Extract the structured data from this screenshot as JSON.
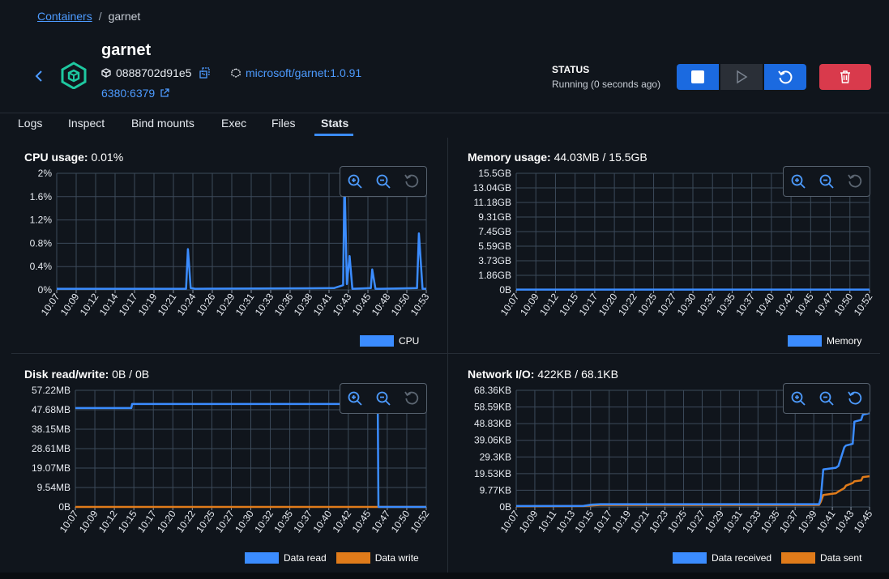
{
  "breadcrumb": {
    "root": "Containers",
    "separator": "/",
    "current": "garnet"
  },
  "container": {
    "name": "garnet",
    "id": "0888702d91e5",
    "image": "microsoft/garnet:1.0.91",
    "ports": "6380:6379"
  },
  "status": {
    "title": "STATUS",
    "value": "Running (0 seconds ago)"
  },
  "icons": {
    "back": "chevron-left-icon",
    "container": "container-cube-icon",
    "id": "cube-icon",
    "copy": "copy-icon",
    "image": "image-layers-icon",
    "external": "external-link-icon",
    "stop": "stop-icon",
    "start": "play-icon",
    "restart": "restart-icon",
    "delete": "trash-icon",
    "zoom_in": "zoom-in-icon",
    "zoom_out": "zoom-out-icon",
    "reset": "reset-icon"
  },
  "colors": {
    "accent": "#3b8cff",
    "danger": "#d93a4c",
    "series_blue": "#3b8cff",
    "series_orange": "#e07b1a"
  },
  "tabs": [
    {
      "label": "Logs"
    },
    {
      "label": "Inspect"
    },
    {
      "label": "Bind mounts"
    },
    {
      "label": "Exec"
    },
    {
      "label": "Files"
    },
    {
      "label": "Stats",
      "active": true
    }
  ],
  "panels": {
    "cpu": {
      "label": "CPU usage:",
      "value": "0.01%"
    },
    "memory": {
      "label": "Memory usage:",
      "value": "44.03MB / 15.5GB"
    },
    "disk": {
      "label": "Disk read/write:",
      "value": "0B / 0B"
    },
    "network": {
      "label": "Network I/O:",
      "value": "422KB / 68.1KB"
    }
  },
  "chart_data": [
    {
      "type": "line",
      "title": "CPU usage",
      "y_ticks": [
        "2%",
        "1.6%",
        "1.2%",
        "0.8%",
        "0.4%",
        "0%"
      ],
      "ylim": [
        0,
        2
      ],
      "x_ticks": [
        "10:07",
        "10:09",
        "10:12",
        "10:14",
        "10:17",
        "10:19",
        "10:21",
        "10:24",
        "10:26",
        "10:29",
        "10:31",
        "10:33",
        "10:36",
        "10:38",
        "10:41",
        "10:43",
        "10:45",
        "10:48",
        "10:50",
        "10:53"
      ],
      "series": [
        {
          "name": "CPU",
          "x": [
            0,
            13,
            14,
            14.2,
            14.5,
            15,
            30,
            31,
            31.15,
            31.4,
            31.7,
            32,
            34,
            34.15,
            34.5,
            35,
            39,
            39.2,
            39.6,
            40
          ],
          "values": [
            0.02,
            0.02,
            0.02,
            0.7,
            0.03,
            0.02,
            0.03,
            0.08,
            1.94,
            0.1,
            0.58,
            0.02,
            0.03,
            0.35,
            0.02,
            0.02,
            0.03,
            0.97,
            0.02,
            0.02
          ]
        }
      ],
      "grid": true,
      "legend": "bottom-right"
    },
    {
      "type": "line",
      "title": "Memory usage",
      "y_ticks": [
        "15.5GB",
        "13.04GB",
        "11.18GB",
        "9.31GB",
        "7.45GB",
        "5.59GB",
        "3.73GB",
        "1.86GB",
        "0B"
      ],
      "ylim": [
        0,
        15.5
      ],
      "x_ticks": [
        "10:07",
        "10:09",
        "10:12",
        "10:15",
        "10:17",
        "10:20",
        "10:22",
        "10:25",
        "10:27",
        "10:30",
        "10:32",
        "10:35",
        "10:37",
        "10:40",
        "10:42",
        "10:45",
        "10:47",
        "10:50",
        "10:52"
      ],
      "series": [
        {
          "name": "Memory",
          "x": [
            0,
            47
          ],
          "values": [
            0.04,
            0.04
          ]
        }
      ],
      "grid": true,
      "legend": "bottom-right"
    },
    {
      "type": "line",
      "title": "Disk read/write",
      "y_ticks": [
        "57.22MB",
        "47.68MB",
        "38.15MB",
        "28.61MB",
        "19.07MB",
        "9.54MB",
        "0B"
      ],
      "ylim": [
        0,
        57.22
      ],
      "x_ticks": [
        "10:07",
        "10:09",
        "10:12",
        "10:15",
        "10:17",
        "10:20",
        "10:22",
        "10:25",
        "10:27",
        "10:30",
        "10:32",
        "10:35",
        "10:37",
        "10:40",
        "10:42",
        "10:45",
        "10:47",
        "10:50",
        "10:52"
      ],
      "series": [
        {
          "name": "Data read",
          "x": [
            0,
            7.5,
            7.6,
            40.5,
            40.6,
            47
          ],
          "values": [
            48.5,
            48.5,
            50.5,
            50.5,
            0,
            0
          ]
        },
        {
          "name": "Data write",
          "x": [
            0,
            47
          ],
          "values": [
            0,
            0
          ]
        }
      ],
      "grid": true,
      "legend": "bottom-right"
    },
    {
      "type": "line",
      "title": "Network I/O",
      "y_ticks": [
        "68.36KB",
        "58.59KB",
        "48.83KB",
        "39.06KB",
        "29.3KB",
        "19.53KB",
        "9.77KB",
        "0B"
      ],
      "ylim": [
        0,
        68.36
      ],
      "x_ticks": [
        "10:07",
        "10:09",
        "10:11",
        "10:13",
        "10:15",
        "10:17",
        "10:19",
        "10:21",
        "10:23",
        "10:25",
        "10:27",
        "10:29",
        "10:31",
        "10:33",
        "10:35",
        "10:37",
        "10:39",
        "10:41",
        "10:43",
        "10:45"
      ],
      "series": [
        {
          "name": "Data received",
          "x": [
            0,
            8,
            9,
            10,
            36,
            36.2,
            36.5,
            38,
            38.3,
            39,
            39.2,
            40,
            40.2,
            41,
            41.2,
            42
          ],
          "values": [
            0.5,
            0.6,
            1.4,
            1.6,
            1.6,
            5,
            22,
            23,
            24,
            35,
            36,
            37,
            50,
            51,
            54,
            55
          ]
        },
        {
          "name": "Data sent",
          "x": [
            0,
            8,
            9,
            10,
            36,
            36.2,
            36.5,
            38,
            38.3,
            39,
            39.2,
            40,
            40.2,
            41,
            41.2,
            42
          ],
          "values": [
            0.4,
            0.5,
            0.9,
            1.2,
            1.2,
            3,
            7,
            8,
            9,
            11,
            12.5,
            14,
            15,
            15.5,
            17.5,
            18
          ]
        }
      ],
      "grid": true,
      "legend": "bottom-right"
    }
  ]
}
